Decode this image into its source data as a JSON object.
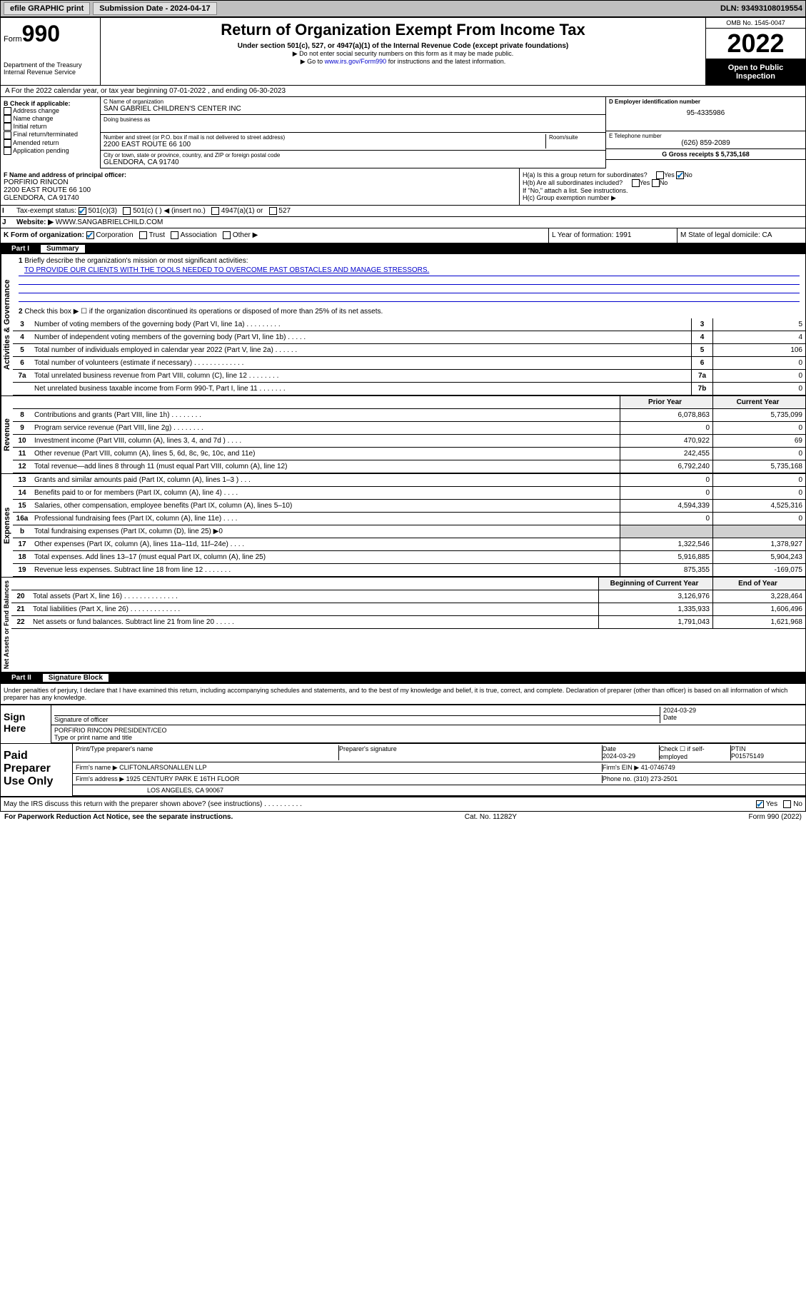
{
  "topbar": {
    "efile": "efile GRAPHIC print",
    "sub_label": "Submission Date - 2024-04-17",
    "dln": "DLN: 93493108019554"
  },
  "header": {
    "form_prefix": "Form",
    "form_num": "990",
    "title": "Return of Organization Exempt From Income Tax",
    "sub1": "Under section 501(c), 527, or 4947(a)(1) of the Internal Revenue Code (except private foundations)",
    "note1": "▶ Do not enter social security numbers on this form as it may be made public.",
    "note2_pre": "▶ Go to ",
    "note2_link": "www.irs.gov/Form990",
    "note2_post": " for instructions and the latest information.",
    "dept": "Department of the Treasury\nInternal Revenue Service",
    "omb": "OMB No. 1545-0047",
    "year": "2022",
    "inspect": "Open to Public Inspection"
  },
  "row_a": "A For the 2022 calendar year, or tax year beginning 07-01-2022   , and ending 06-30-2023",
  "col_b": {
    "hdr": "B Check if applicable:",
    "items": [
      "Address change",
      "Name change",
      "Initial return",
      "Final return/terminated",
      "Amended return",
      "Application pending"
    ]
  },
  "c": {
    "name_lbl": "C Name of organization",
    "name": "SAN GABRIEL CHILDREN'S CENTER INC",
    "dba_lbl": "Doing business as",
    "addr_lbl": "Number and street (or P.O. box if mail is not delivered to street address)",
    "room_lbl": "Room/suite",
    "addr": "2200 EAST ROUTE 66 100",
    "city_lbl": "City or town, state or province, country, and ZIP or foreign postal code",
    "city": "GLENDORA, CA  91740"
  },
  "d": {
    "lbl": "D Employer identification number",
    "val": "95-4335986"
  },
  "e": {
    "lbl": "E Telephone number",
    "val": "(626) 859-2089"
  },
  "g": "G Gross receipts $ 5,735,168",
  "f": {
    "lbl": "F Name and address of principal officer:",
    "name": "PORFIRIO RINCON",
    "addr1": "2200 EAST ROUTE 66 100",
    "addr2": "GLENDORA, CA  91740"
  },
  "h": {
    "a": "H(a)  Is this a group return for subordinates?",
    "a_yes": "Yes",
    "a_no": "No",
    "b": "H(b)  Are all subordinates included?",
    "b_yes": "Yes",
    "b_no": "No",
    "b_note": "If \"No,\" attach a list. See instructions.",
    "c": "H(c)  Group exemption number ▶"
  },
  "i": {
    "lbl": "Tax-exempt status:",
    "opts": [
      "501(c)(3)",
      "501(c) (  ) ◀ (insert no.)",
      "4947(a)(1) or",
      "527"
    ]
  },
  "j": {
    "lbl": "Website: ▶",
    "val": "WWW.SANGABRIELCHILD.COM"
  },
  "k": "K Form of organization:",
  "k_opts": [
    "Corporation",
    "Trust",
    "Association",
    "Other ▶"
  ],
  "l": "L Year of formation: 1991",
  "m": "M State of legal domicile: CA",
  "part1": {
    "num": "Part I",
    "title": "Summary"
  },
  "summary": {
    "q1": "Briefly describe the organization's mission or most significant activities:",
    "mission": "TO PROVIDE OUR CLIENTS WITH THE TOOLS NEEDED TO OVERCOME PAST OBSTACLES AND MANAGE STRESSORS.",
    "q2": "Check this box ▶ ☐  if the organization discontinued its operations or disposed of more than 25% of its net assets.",
    "lines": [
      {
        "n": "3",
        "d": "Number of voting members of the governing body (Part VI, line 1a)   .    .    .    .    .    .    .    .    .",
        "box": "3",
        "v": "5"
      },
      {
        "n": "4",
        "d": "Number of independent voting members of the governing body (Part VI, line 1b)   .    .    .    .    .",
        "box": "4",
        "v": "4"
      },
      {
        "n": "5",
        "d": "Total number of individuals employed in calendar year 2022 (Part V, line 2a)   .    .    .    .    .    .",
        "box": "5",
        "v": "106"
      },
      {
        "n": "6",
        "d": "Total number of volunteers (estimate if necessary)   .    .    .    .    .    .    .    .    .    .    .    .    .",
        "box": "6",
        "v": "0"
      },
      {
        "n": "7a",
        "d": "Total unrelated business revenue from Part VIII, column (C), line 12   .    .    .    .    .    .    .    .",
        "box": "7a",
        "v": "0"
      },
      {
        "n": "",
        "d": "Net unrelated business taxable income from Form 990-T, Part I, line 11   .    .    .    .    .    .    .",
        "box": "7b",
        "v": "0"
      }
    ],
    "col_hdr_prior": "Prior Year",
    "col_hdr_curr": "Current Year"
  },
  "revenue": [
    {
      "n": "8",
      "d": "Contributions and grants (Part VIII, line 1h)   .    .    .    .    .    .    .    .",
      "p": "6,078,863",
      "c": "5,735,099"
    },
    {
      "n": "9",
      "d": "Program service revenue (Part VIII, line 2g)   .    .    .    .    .    .    .    .",
      "p": "0",
      "c": "0"
    },
    {
      "n": "10",
      "d": "Investment income (Part VIII, column (A), lines 3, 4, and 7d )   .    .    .    .",
      "p": "470,922",
      "c": "69"
    },
    {
      "n": "11",
      "d": "Other revenue (Part VIII, column (A), lines 5, 6d, 8c, 9c, 10c, and 11e)",
      "p": "242,455",
      "c": "0"
    },
    {
      "n": "12",
      "d": "Total revenue—add lines 8 through 11 (must equal Part VIII, column (A), line 12)",
      "p": "6,792,240",
      "c": "5,735,168"
    }
  ],
  "expenses": [
    {
      "n": "13",
      "d": "Grants and similar amounts paid (Part IX, column (A), lines 1–3 )   .    .    .",
      "p": "0",
      "c": "0"
    },
    {
      "n": "14",
      "d": "Benefits paid to or for members (Part IX, column (A), line 4)   .    .    .    .",
      "p": "0",
      "c": "0"
    },
    {
      "n": "15",
      "d": "Salaries, other compensation, employee benefits (Part IX, column (A), lines 5–10)",
      "p": "4,594,339",
      "c": "4,525,316"
    },
    {
      "n": "16a",
      "d": "Professional fundraising fees (Part IX, column (A), line 11e)   .    .    .    .",
      "p": "0",
      "c": "0"
    },
    {
      "n": "b",
      "d": "Total fundraising expenses (Part IX, column (D), line 25) ▶0",
      "p": "",
      "c": "",
      "shade": true
    },
    {
      "n": "17",
      "d": "Other expenses (Part IX, column (A), lines 11a–11d, 11f–24e)   .    .    .    .",
      "p": "1,322,546",
      "c": "1,378,927"
    },
    {
      "n": "18",
      "d": "Total expenses. Add lines 13–17 (must equal Part IX, column (A), line 25)",
      "p": "5,916,885",
      "c": "5,904,243"
    },
    {
      "n": "19",
      "d": "Revenue less expenses. Subtract line 18 from line 12   .    .    .    .    .    .    .",
      "p": "875,355",
      "c": "-169,075"
    }
  ],
  "net_hdr_beg": "Beginning of Current Year",
  "net_hdr_end": "End of Year",
  "netassets": [
    {
      "n": "20",
      "d": "Total assets (Part X, line 16)   .    .    .    .    .    .    .    .    .    .    .    .    .    .",
      "p": "3,126,976",
      "c": "3,228,464"
    },
    {
      "n": "21",
      "d": "Total liabilities (Part X, line 26)   .    .    .    .    .    .    .    .    .    .    .    .    .",
      "p": "1,335,933",
      "c": "1,606,496"
    },
    {
      "n": "22",
      "d": "Net assets or fund balances. Subtract line 21 from line 20   .    .    .    .    .",
      "p": "1,791,043",
      "c": "1,621,968"
    }
  ],
  "part2": {
    "num": "Part II",
    "title": "Signature Block"
  },
  "penalty": "Under penalties of perjury, I declare that I have examined this return, including accompanying schedules and statements, and to the best of my knowledge and belief, it is true, correct, and complete. Declaration of preparer (other than officer) is based on all information of which preparer has any knowledge.",
  "sign": {
    "here": "Sign Here",
    "sig_lbl": "Signature of officer",
    "date": "2024-03-29",
    "date_lbl": "Date",
    "name": "PORFIRIO RINCON  PRESIDENT/CEO",
    "name_lbl": "Type or print name and title"
  },
  "paid": {
    "lbl": "Paid Preparer Use Only",
    "pname_lbl": "Print/Type preparer's name",
    "psig_lbl": "Preparer's signature",
    "pdate_lbl": "Date",
    "pdate": "2024-03-29",
    "chk_lbl": "Check ☐ if self-employed",
    "ptin_lbl": "PTIN",
    "ptin": "P01575149",
    "firm_lbl": "Firm's name    ▶",
    "firm": "CLIFTONLARSONALLEN LLP",
    "ein_lbl": "Firm's EIN ▶",
    "ein": "41-0746749",
    "addr_lbl": "Firm's address ▶",
    "addr1": "1925 CENTURY PARK E 16TH FLOOR",
    "addr2": "LOS ANGELES, CA  90067",
    "phone_lbl": "Phone no.",
    "phone": "(310) 273-2501"
  },
  "discuss": "May the IRS discuss this return with the preparer shown above? (see instructions)   .    .    .    .    .    .    .    .    .    .",
  "discuss_yes": "Yes",
  "discuss_no": "No",
  "footer": {
    "left": "For Paperwork Reduction Act Notice, see the separate instructions.",
    "mid": "Cat. No. 11282Y",
    "right": "Form 990 (2022)"
  },
  "vlabels": {
    "gov": "Activities & Governance",
    "rev": "Revenue",
    "exp": "Expenses",
    "net": "Net Assets or Fund Balances"
  }
}
